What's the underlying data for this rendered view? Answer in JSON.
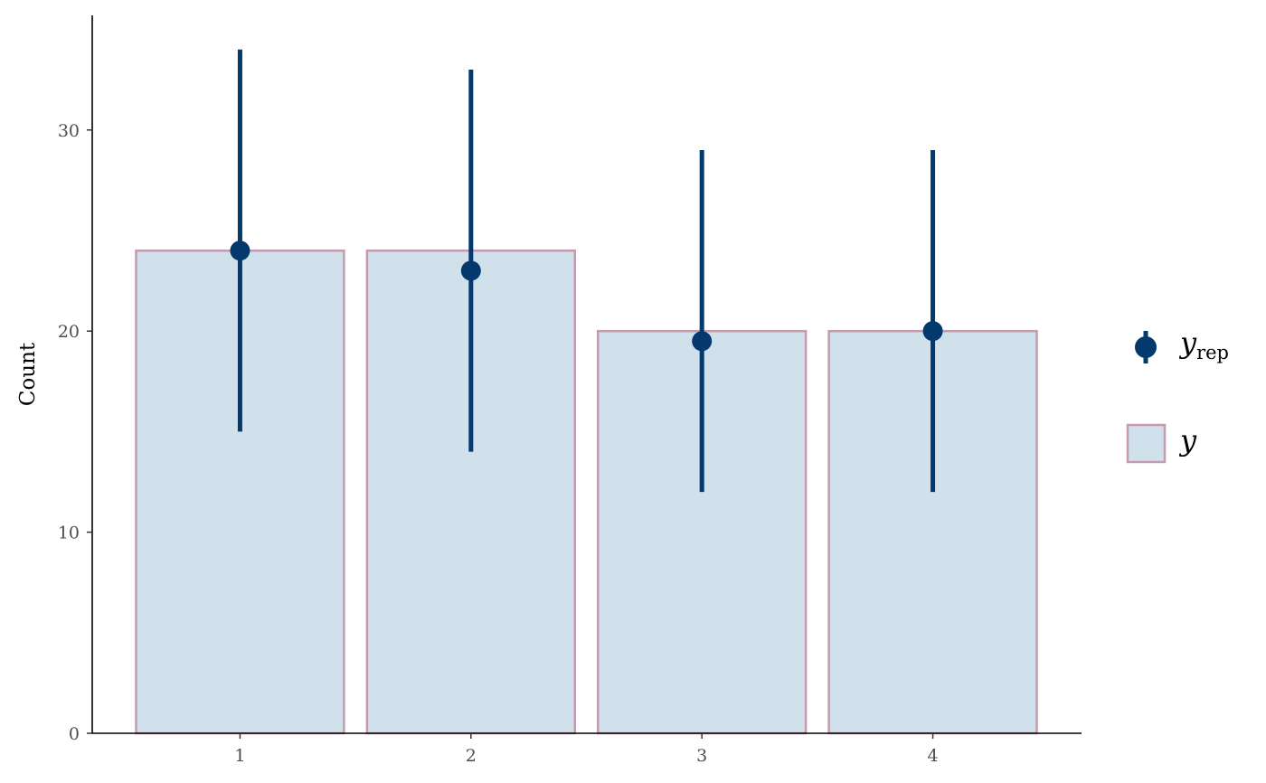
{
  "chart_data": {
    "type": "bar",
    "title": "",
    "xlabel": "",
    "ylabel": "Count",
    "categories": [
      "1",
      "2",
      "3",
      "4"
    ],
    "ylim": [
      0,
      35.7
    ],
    "yticks": [
      0,
      10,
      20,
      30
    ],
    "grid": false,
    "legend_position": "right",
    "series": [
      {
        "name": "y",
        "kind": "bar",
        "values": [
          24,
          24,
          20,
          20
        ],
        "fill": "#d1e1ec",
        "stroke": "#c799b1"
      },
      {
        "name": "y_rep",
        "kind": "pointrange",
        "values": [
          24,
          23,
          19.5,
          20
        ],
        "lower": [
          15,
          14,
          12,
          12
        ],
        "upper": [
          34,
          33,
          29,
          29
        ],
        "color": "#03396c"
      }
    ],
    "legend": {
      "yrep_main": "y",
      "yrep_sub": "rep",
      "y_label": "y"
    }
  }
}
